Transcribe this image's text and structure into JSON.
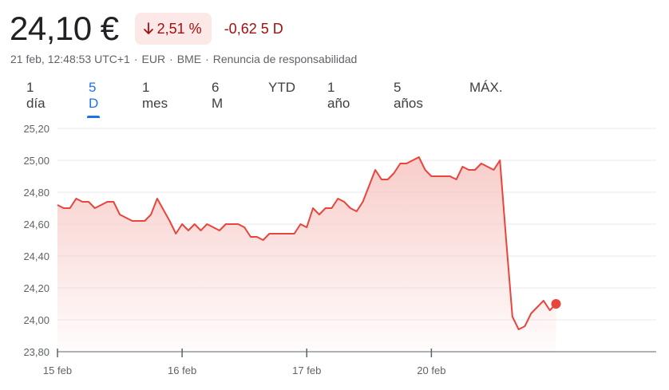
{
  "quote": {
    "price": "24,10 €",
    "change_percent": "2,51 %",
    "change_abs": "-0,62",
    "period": "5 D",
    "direction": "down",
    "timestamp": "21 feb, 12:48:53 UTC+1",
    "currency": "EUR",
    "exchange": "BME",
    "disclaimer": "Renuncia de responsabilidad",
    "separator": "·"
  },
  "tabs": [
    {
      "label": "1 día",
      "active": false
    },
    {
      "label": "5 D",
      "active": true
    },
    {
      "label": "1 mes",
      "active": false
    },
    {
      "label": "6 M",
      "active": false
    },
    {
      "label": "YTD",
      "active": false
    },
    {
      "label": "1 año",
      "active": false
    },
    {
      "label": "5 años",
      "active": false
    },
    {
      "label": "MÁX.",
      "active": false
    }
  ],
  "colors": {
    "line": "#e8453c",
    "fill_top": "#f6c4c0",
    "negative_text": "#a50e0e",
    "badge_bg": "#fce8e6",
    "active_tab": "#1a73e8",
    "grid": "#e8eaed",
    "axis": "#5f6368"
  },
  "chart_data": {
    "type": "area",
    "ylim": [
      23.8,
      25.2
    ],
    "y_ticks": [
      "25,20",
      "25,00",
      "24,80",
      "24,60",
      "24,40",
      "24,20",
      "24,00",
      "23,80"
    ],
    "y_tick_values": [
      25.2,
      25.0,
      24.8,
      24.6,
      24.4,
      24.2,
      24.0,
      23.8
    ],
    "x_tick_labels": [
      "15 feb",
      "16 feb",
      "17 feb",
      "20 feb"
    ],
    "x_tick_index": [
      0,
      20,
      40,
      60
    ],
    "grid": true,
    "total_slots": 98,
    "current_point": true,
    "series": [
      {
        "values": [
          24.72,
          24.7,
          24.7,
          24.76,
          24.74,
          24.74,
          24.7,
          24.72,
          24.74,
          24.74,
          24.66,
          24.64,
          24.62,
          24.62,
          24.62,
          24.66,
          24.76,
          24.69,
          24.62,
          24.54,
          24.6,
          24.56,
          24.6,
          24.56,
          24.6,
          24.58,
          24.56,
          24.6,
          24.6,
          24.6,
          24.58,
          24.52,
          24.52,
          24.5,
          24.54,
          24.54,
          24.54,
          24.54,
          24.54,
          24.6,
          24.58,
          24.7,
          24.66,
          24.7,
          24.7,
          24.76,
          24.74,
          24.7,
          24.68,
          24.74,
          24.84,
          24.94,
          24.88,
          24.88,
          24.92,
          24.98,
          24.98,
          25.0,
          25.02,
          24.94,
          24.9,
          24.9,
          24.9,
          24.9,
          24.88,
          24.96,
          24.94,
          24.94,
          24.98,
          24.96,
          24.94,
          25.0,
          24.5,
          24.02,
          23.94,
          23.96,
          24.04,
          24.08,
          24.12,
          24.06,
          24.1
        ]
      }
    ]
  }
}
